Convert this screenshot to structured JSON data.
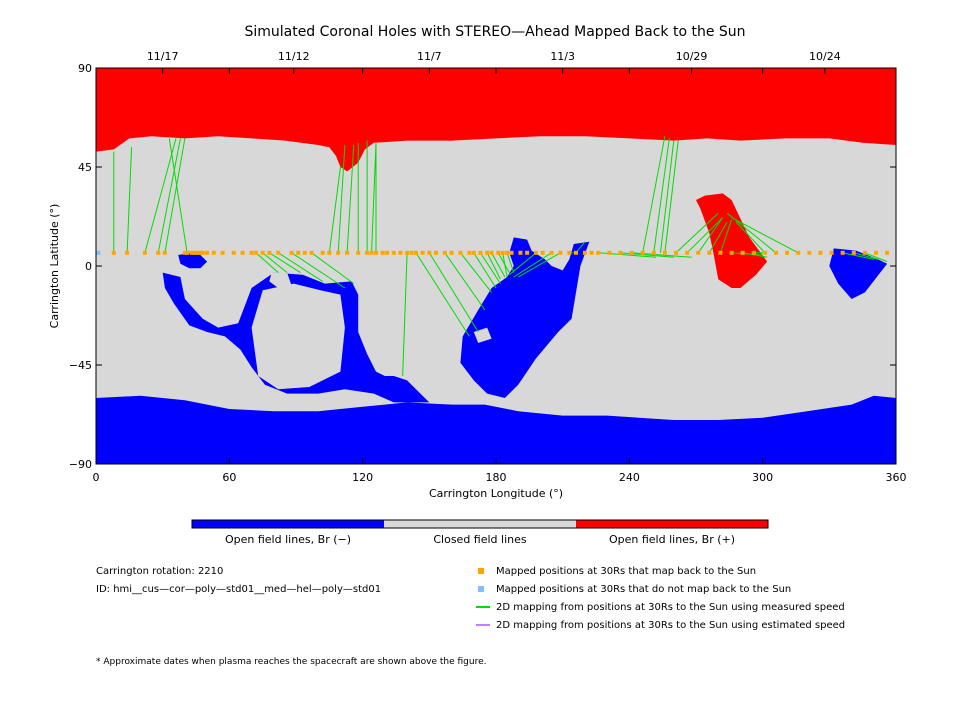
{
  "chart_data": {
    "type": "map",
    "title": "Simulated Coronal Holes with STEREO—Ahead Mapped Back to the Sun",
    "xlabel": "Carrington Longitude (°)",
    "ylabel": "Carrington Latitude (°)",
    "xlim": [
      0,
      360
    ],
    "ylim": [
      -90,
      90
    ],
    "x_ticks": [
      0,
      60,
      120,
      180,
      240,
      300,
      360
    ],
    "y_ticks": [
      -90,
      -45,
      0,
      45,
      90
    ],
    "top_date_ticks": [
      {
        "label": "11/17",
        "lon": 30
      },
      {
        "label": "11/12",
        "lon": 89
      },
      {
        "label": "11/7",
        "lon": 150
      },
      {
        "label": "11/3",
        "lon": 210
      },
      {
        "label": "10/29",
        "lon": 268
      },
      {
        "label": "10/24",
        "lon": 328
      }
    ],
    "colors": {
      "open_negative": "#0000ff",
      "closed": "#d8d8d8",
      "open_positive": "#ff0000",
      "mapped_point": "#ffa500",
      "unmapped_point": "#80c0ff",
      "measured_line": "#00dd00",
      "estimated_line": "#c080ff"
    },
    "regions": {
      "north_positive": [
        [
          0,
          52
        ],
        [
          8,
          53
        ],
        [
          15,
          58
        ],
        [
          25,
          59
        ],
        [
          40,
          58
        ],
        [
          55,
          59
        ],
        [
          70,
          58
        ],
        [
          85,
          57
        ],
        [
          100,
          55
        ],
        [
          105,
          54
        ],
        [
          108,
          50
        ],
        [
          110,
          45
        ],
        [
          113,
          43
        ],
        [
          118,
          47
        ],
        [
          121,
          53
        ],
        [
          125,
          56
        ],
        [
          140,
          57
        ],
        [
          160,
          57
        ],
        [
          180,
          58
        ],
        [
          200,
          59
        ],
        [
          220,
          59
        ],
        [
          240,
          58
        ],
        [
          260,
          57
        ],
        [
          275,
          58
        ],
        [
          290,
          57
        ],
        [
          310,
          58
        ],
        [
          330,
          58
        ],
        [
          345,
          56
        ],
        [
          360,
          55
        ],
        [
          360,
          90
        ],
        [
          0,
          90
        ]
      ],
      "south_negative": [
        [
          0,
          -60
        ],
        [
          20,
          -59
        ],
        [
          40,
          -61
        ],
        [
          60,
          -65
        ],
        [
          80,
          -66
        ],
        [
          100,
          -66
        ],
        [
          120,
          -64
        ],
        [
          140,
          -62
        ],
        [
          160,
          -63
        ],
        [
          175,
          -63
        ],
        [
          190,
          -66
        ],
        [
          210,
          -68
        ],
        [
          230,
          -68
        ],
        [
          260,
          -70
        ],
        [
          280,
          -70
        ],
        [
          300,
          -69
        ],
        [
          320,
          -66
        ],
        [
          340,
          -63
        ],
        [
          350,
          -59
        ],
        [
          360,
          -60
        ],
        [
          360,
          -90
        ],
        [
          0,
          -90
        ]
      ],
      "south_arm": [
        [
          30,
          -3
        ],
        [
          38,
          -5
        ],
        [
          40,
          -15
        ],
        [
          48,
          -24
        ],
        [
          55,
          -28
        ],
        [
          64,
          -26
        ],
        [
          70,
          -10
        ],
        [
          80,
          -3
        ],
        [
          93,
          -4
        ],
        [
          103,
          -8
        ],
        [
          115,
          -7
        ],
        [
          118,
          -13
        ],
        [
          118,
          -30
        ],
        [
          122,
          -40
        ],
        [
          126,
          -48
        ],
        [
          130,
          -50
        ],
        [
          134,
          -50
        ],
        [
          140,
          -52
        ],
        [
          146,
          -58
        ],
        [
          150,
          -62
        ],
        [
          134,
          -62
        ],
        [
          125,
          -58
        ],
        [
          112,
          -56
        ],
        [
          100,
          -58
        ],
        [
          86,
          -58
        ],
        [
          76,
          -54
        ],
        [
          70,
          -46
        ],
        [
          65,
          -38
        ],
        [
          58,
          -32
        ],
        [
          50,
          -30
        ],
        [
          42,
          -27
        ],
        [
          35,
          -17
        ],
        [
          31,
          -10
        ]
      ],
      "south_arm_hole": [
        [
          75,
          -11
        ],
        [
          89,
          -8
        ],
        [
          101,
          -11
        ],
        [
          110,
          -13
        ],
        [
          112,
          -28
        ],
        [
          110,
          -48
        ],
        [
          96,
          -55
        ],
        [
          82,
          -56
        ],
        [
          73,
          -50
        ],
        [
          70,
          -28
        ]
      ],
      "center_negative": [
        [
          165,
          -32
        ],
        [
          172,
          -20
        ],
        [
          178,
          -10
        ],
        [
          185,
          -5
        ],
        [
          188,
          0
        ],
        [
          186,
          6
        ],
        [
          188,
          13
        ],
        [
          194,
          12
        ],
        [
          196,
          7
        ],
        [
          202,
          3
        ],
        [
          205,
          0
        ],
        [
          210,
          -2
        ],
        [
          213,
          3
        ],
        [
          215,
          10
        ],
        [
          222,
          11
        ],
        [
          218,
          0
        ],
        [
          216,
          -12
        ],
        [
          214,
          -24
        ],
        [
          208,
          -30
        ],
        [
          198,
          -42
        ],
        [
          190,
          -54
        ],
        [
          184,
          -60
        ],
        [
          176,
          -58
        ],
        [
          170,
          -52
        ],
        [
          164,
          -44
        ]
      ],
      "center_hole": [
        [
          170,
          -30
        ],
        [
          176,
          -28
        ],
        [
          178,
          -33
        ],
        [
          172,
          -35
        ]
      ],
      "upper_left_blob": [
        [
          37,
          5
        ],
        [
          43,
          6
        ],
        [
          47,
          5
        ],
        [
          50,
          2
        ],
        [
          47,
          -1
        ],
        [
          42,
          -1
        ],
        [
          38,
          1
        ]
      ],
      "small_white_hole": [
        [
          79,
          -3
        ],
        [
          86,
          -3
        ],
        [
          88,
          -9
        ],
        [
          82,
          -10
        ],
        [
          78,
          -7
        ]
      ],
      "right_blue_patch": [
        [
          332,
          8
        ],
        [
          342,
          7
        ],
        [
          352,
          3
        ],
        [
          356,
          1
        ],
        [
          346,
          -12
        ],
        [
          340,
          -15
        ],
        [
          334,
          -8
        ],
        [
          330,
          0
        ]
      ],
      "red_patch": [
        [
          274,
          32
        ],
        [
          282,
          33
        ],
        [
          286,
          30
        ],
        [
          294,
          13
        ],
        [
          302,
          2
        ],
        [
          297,
          -4
        ],
        [
          290,
          -10
        ],
        [
          286,
          -10
        ],
        [
          280,
          -6
        ],
        [
          278,
          5
        ],
        [
          276,
          15
        ],
        [
          272,
          26
        ],
        [
          270,
          30
        ]
      ]
    },
    "mapped_points_lon": [
      1,
      8,
      14,
      22,
      28,
      31,
      40,
      41,
      43,
      44,
      45,
      46,
      47,
      48,
      50,
      53,
      57,
      62,
      66,
      70,
      72,
      75,
      78,
      82,
      88,
      91,
      94,
      97,
      102,
      105,
      109,
      113,
      118,
      122,
      124,
      126,
      129,
      131,
      134,
      137,
      140,
      142,
      144,
      147,
      150,
      153,
      157,
      160,
      164,
      168,
      170,
      173,
      176,
      178,
      181,
      183,
      185,
      187,
      191,
      194,
      198,
      201,
      205,
      209,
      213,
      216,
      220,
      223,
      226,
      231,
      236,
      241,
      246,
      251,
      256,
      261,
      266,
      271,
      276,
      281,
      286,
      291,
      296,
      301,
      306,
      311,
      316,
      321,
      326,
      331,
      336,
      341,
      346,
      351,
      356
    ],
    "mapped_points_lat": 6,
    "unmapped_points_lon": [
      1
    ],
    "measured_lines": [
      [
        8,
        6,
        8,
        52
      ],
      [
        14,
        6,
        16,
        54
      ],
      [
        22,
        6,
        36,
        58
      ],
      [
        28,
        6,
        38,
        58
      ],
      [
        31,
        6,
        40,
        58
      ],
      [
        41,
        6,
        33,
        58
      ],
      [
        105,
        6,
        110,
        45
      ],
      [
        109,
        6,
        112,
        55
      ],
      [
        113,
        6,
        116,
        55
      ],
      [
        118,
        6,
        118,
        56
      ],
      [
        122,
        6,
        122,
        57
      ],
      [
        124,
        6,
        126,
        56
      ],
      [
        126,
        6,
        126,
        56
      ],
      [
        72,
        6,
        82,
        -3
      ],
      [
        75,
        6,
        86,
        -3
      ],
      [
        78,
        6,
        92,
        -3
      ],
      [
        82,
        6,
        102,
        -7
      ],
      [
        88,
        6,
        112,
        -10
      ],
      [
        97,
        6,
        116,
        -8
      ],
      [
        140,
        6,
        138,
        -50
      ],
      [
        144,
        6,
        168,
        -32
      ],
      [
        150,
        6,
        172,
        -30
      ],
      [
        157,
        6,
        175,
        -20
      ],
      [
        164,
        6,
        178,
        -12
      ],
      [
        170,
        6,
        180,
        -10
      ],
      [
        173,
        6,
        182,
        -8
      ],
      [
        176,
        6,
        182,
        -6
      ],
      [
        178,
        6,
        184,
        -5
      ],
      [
        181,
        6,
        186,
        -3
      ],
      [
        183,
        6,
        185,
        -5
      ],
      [
        185,
        6,
        188,
        -3
      ],
      [
        198,
        6,
        186,
        -4
      ],
      [
        205,
        6,
        188,
        -5
      ],
      [
        209,
        6,
        190,
        -5
      ],
      [
        213,
        6,
        215,
        6
      ],
      [
        216,
        6,
        220,
        11
      ],
      [
        246,
        6,
        256,
        59
      ],
      [
        251,
        6,
        258,
        58
      ],
      [
        254,
        6,
        260,
        57
      ],
      [
        256,
        6,
        262,
        57
      ],
      [
        261,
        6,
        280,
        24
      ],
      [
        266,
        6,
        282,
        22
      ],
      [
        271,
        6,
        282,
        22
      ],
      [
        276,
        6,
        284,
        20
      ],
      [
        281,
        6,
        286,
        21
      ],
      [
        286,
        6,
        300,
        5
      ],
      [
        291,
        6,
        302,
        4
      ],
      [
        296,
        6,
        302,
        6
      ],
      [
        301,
        6,
        288,
        20
      ],
      [
        306,
        6,
        284,
        24
      ],
      [
        316,
        6,
        286,
        22
      ],
      [
        226,
        6,
        252,
        4
      ],
      [
        236,
        6,
        260,
        4
      ],
      [
        241,
        6,
        268,
        4
      ],
      [
        336,
        6,
        350,
        3
      ],
      [
        341,
        6,
        352,
        3
      ],
      [
        346,
        6,
        356,
        2
      ]
    ]
  },
  "top_ticks_labels": [
    "11/17",
    "11/12",
    "11/7",
    "11/3",
    "10/29",
    "10/24"
  ],
  "colorbar": {
    "labels": [
      "Open field lines, Br (−)",
      "Closed field lines",
      "Open field lines, Br (+)"
    ]
  },
  "info": {
    "rotation": "Carrington rotation: 2210",
    "id": "ID: hmi__cus—cor—poly—std01__med—hel—poly—std01"
  },
  "legend": [
    {
      "label": "Mapped positions at 30Rs that map back to the Sun",
      "color": "#ffa500",
      "kind": "square"
    },
    {
      "label": "Mapped positions at 30Rs that do not map back to the Sun",
      "color": "#80c0ff",
      "kind": "square"
    },
    {
      "label": "2D mapping from positions at 30Rs to the Sun using measured speed",
      "color": "#00dd00",
      "kind": "line"
    },
    {
      "label": "2D mapping from positions at 30Rs to the Sun using estimated speed",
      "color": "#c080ff",
      "kind": "line"
    }
  ],
  "footnote": "* Approximate dates when plasma reaches the spacecraft are shown above the figure."
}
